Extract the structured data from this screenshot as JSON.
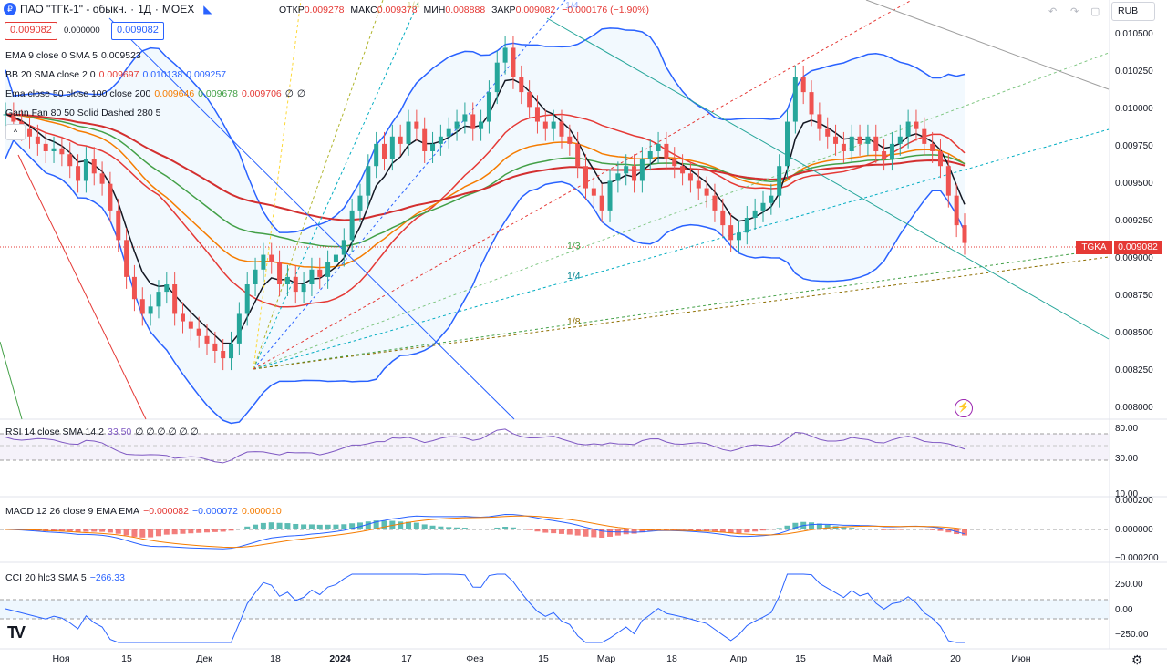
{
  "header": {
    "symbol": "ПАО \"ТГК-1\" - обыкн.",
    "interval": "1Д",
    "exchange": "MOEX",
    "open_label": "ОТКР",
    "open": "0.009278",
    "high_label": "МАКС",
    "high": "0.009378",
    "low_label": "МИН",
    "low": "0.008888",
    "close_label": "ЗАКР",
    "close": "0.009082",
    "change": "−0.000176 (−1.90%)",
    "sell_price": "0.009082",
    "spread": "0.000000",
    "buy_price": "0.009082",
    "currency": "RUB"
  },
  "legends": {
    "ema": {
      "label": "EMA 9 close 0 SMA 5",
      "value": "0.009523"
    },
    "bb": {
      "label": "BB 20 SMA close 2 0",
      "v1": "0.009697",
      "v2": "0.010138",
      "v3": "0.009257"
    },
    "ema2": {
      "label": "Ema close 50 close 100 close 200",
      "v1": "0.009646",
      "v2": "0.009678",
      "v3": "0.009706",
      "v4": "∅",
      "v5": "∅"
    },
    "gann": {
      "label": "Gann Fan 80 50 Solid Dashed 280 5"
    },
    "collapse": "^"
  },
  "price_axis": {
    "labels": [
      "0.010500",
      "0.010250",
      "0.010000",
      "0.009750",
      "0.009500",
      "0.009250",
      "0.009000",
      "0.008750",
      "0.008500",
      "0.008250",
      "0.008000"
    ],
    "ticker": "TGKA",
    "last_price": "0.009082"
  },
  "fan_labels": [
    "1/3",
    "1/4",
    "1/8",
    "1/4",
    "1/4"
  ],
  "rsi": {
    "label": "RSI 14 close SMA 14 2",
    "value": "33.50",
    "nulls": "∅ ∅ ∅ ∅ ∅ ∅",
    "axis": [
      "80.00",
      "30.00",
      "10.00"
    ]
  },
  "macd": {
    "label": "MACD 12 26 close 9 EMA EMA",
    "v1": "−0.000082",
    "v2": "−0.000072",
    "v3": "0.000010",
    "axis": [
      "0.000200",
      "0.000000",
      "−0.000200"
    ]
  },
  "cci": {
    "label": "CCI 20 hlc3 SMA 5",
    "value": "−266.33",
    "axis": [
      "250.00",
      "0.00",
      "−250.00"
    ]
  },
  "time_axis": [
    {
      "label": "Ноя",
      "bold": false
    },
    {
      "label": "15",
      "bold": false
    },
    {
      "label": "Дек",
      "bold": false
    },
    {
      "label": "18",
      "bold": false
    },
    {
      "label": "2024",
      "bold": true
    },
    {
      "label": "17",
      "bold": false
    },
    {
      "label": "Фев",
      "bold": false
    },
    {
      "label": "15",
      "bold": false
    },
    {
      "label": "Мар",
      "bold": false
    },
    {
      "label": "18",
      "bold": false
    },
    {
      "label": "Апр",
      "bold": false
    },
    {
      "label": "15",
      "bold": false
    },
    {
      "label": "Май",
      "bold": false
    },
    {
      "label": "20",
      "bold": false
    },
    {
      "label": "Июн",
      "bold": false
    }
  ],
  "chart_data": {
    "type": "candlestick",
    "price_range": [
      0.0079,
      0.0106
    ],
    "close_series": [
      0.00995,
      0.0099,
      0.00985,
      0.0098,
      0.00975,
      0.0097,
      0.00972,
      0.00968,
      0.0096,
      0.0095,
      0.00965,
      0.00955,
      0.00948,
      0.0093,
      0.0091,
      0.00885,
      0.0087,
      0.0086,
      0.00865,
      0.00875,
      0.0088,
      0.0086,
      0.00855,
      0.0085,
      0.00845,
      0.0084,
      0.00835,
      0.0083,
      0.0084,
      0.0086,
      0.0088,
      0.0089,
      0.009,
      0.00895,
      0.0088,
      0.00885,
      0.00875,
      0.0088,
      0.0089,
      0.00885,
      0.00895,
      0.009,
      0.0091,
      0.0093,
      0.0094,
      0.0096,
      0.00975,
      0.00965,
      0.0098,
      0.00975,
      0.0099,
      0.00985,
      0.0097,
      0.00975,
      0.0098,
      0.00985,
      0.0099,
      0.00995,
      0.00985,
      0.0099,
      0.0101,
      0.0103,
      0.0104,
      0.0102,
      0.0101,
      0.01,
      0.0099,
      0.00985,
      0.0099,
      0.0098,
      0.00975,
      0.0096,
      0.00945,
      0.0094,
      0.0093,
      0.0095,
      0.00955,
      0.0096,
      0.0095,
      0.00965,
      0.0097,
      0.00975,
      0.00965,
      0.0096,
      0.00955,
      0.0095,
      0.00945,
      0.0094,
      0.0093,
      0.0092,
      0.0091,
      0.00915,
      0.00925,
      0.0093,
      0.00935,
      0.0094,
      0.0096,
      0.0099,
      0.0102,
      0.0101,
      0.00995,
      0.00985,
      0.0098,
      0.00975,
      0.0097,
      0.0098,
      0.00975,
      0.0098,
      0.0097,
      0.00965,
      0.00975,
      0.0098,
      0.0099,
      0.00985,
      0.00975,
      0.0097,
      0.0096,
      0.0094,
      0.0092,
      0.00908
    ]
  }
}
